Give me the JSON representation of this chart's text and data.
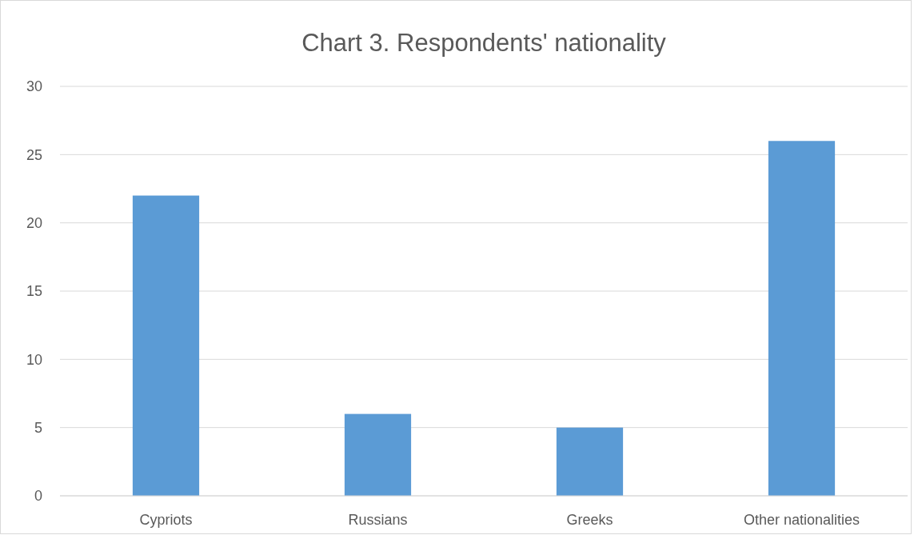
{
  "chart_data": {
    "type": "bar",
    "title": "Chart 3. Respondents' nationality",
    "categories": [
      "Cypriots",
      "Russians",
      "Greeks",
      "Other nationalities"
    ],
    "values": [
      22,
      6,
      5,
      26
    ],
    "color": "#5b9bd5",
    "ylim": [
      0,
      30
    ],
    "yticks": [
      0,
      5,
      10,
      15,
      20,
      25,
      30
    ],
    "grid": "y"
  }
}
